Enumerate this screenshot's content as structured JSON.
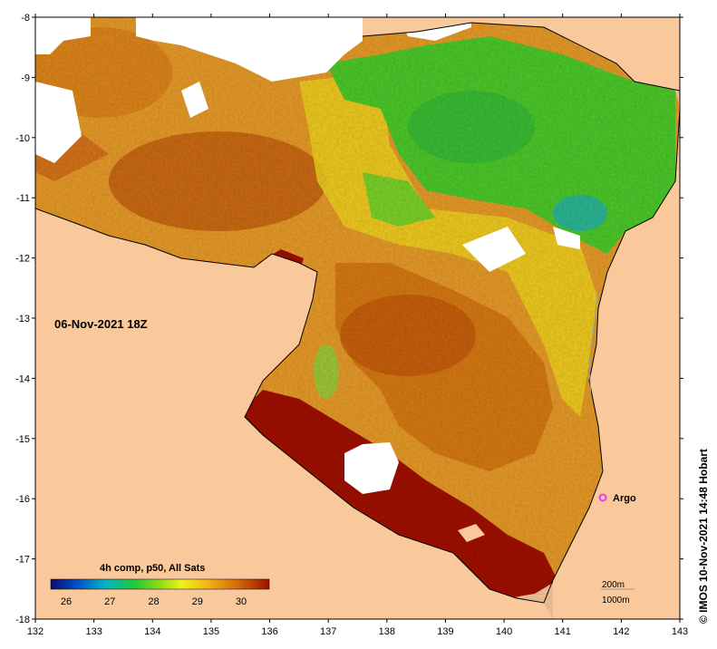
{
  "map": {
    "datetime_label": "06-Nov-2021 18Z",
    "credit": "© IMOS 10-Nov-2021 14:48 Hobart",
    "argo_label": "Argo",
    "bathymetry": {
      "contour_a": "200m",
      "contour_b": "1000m"
    },
    "x_axis": {
      "ticks": [
        "132",
        "133",
        "134",
        "135",
        "136",
        "137",
        "138",
        "139",
        "140",
        "141",
        "142",
        "143"
      ]
    },
    "y_axis": {
      "ticks": [
        "-8",
        "-9",
        "-10",
        "-11",
        "-12",
        "-13",
        "-14",
        "-15",
        "-16",
        "-17",
        "-18"
      ]
    },
    "colorbar": {
      "title": "4h comp, p50, All Sats",
      "ticks": [
        "26",
        "27",
        "28",
        "29",
        "30"
      ]
    },
    "colors": {
      "land": "#f9c89b",
      "no_data": "#ffffff",
      "warmest": "#a01000",
      "argo_marker": "#e040f0"
    }
  }
}
